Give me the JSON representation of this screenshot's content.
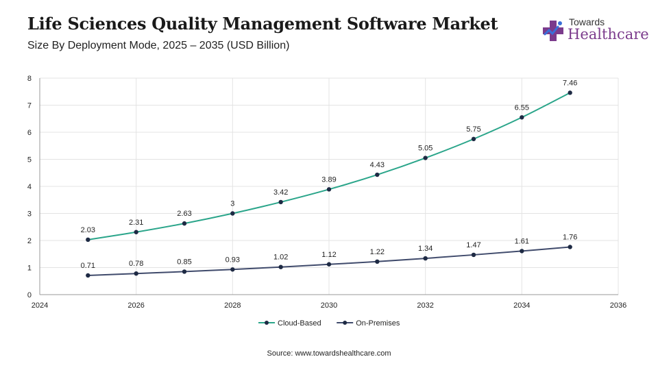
{
  "header": {
    "title": "Life Sciences Quality Management Software Market",
    "subtitle": "Size By Deployment Mode, 2025 – 2035 (USD Billion)"
  },
  "logo": {
    "line1": "Towards",
    "line2": "Healthcare",
    "icon": "medical-cross-icon",
    "colors": {
      "cross": "#7b3b8c",
      "accent": "#3a6fd8"
    }
  },
  "source": "Source: www.towardshealthcare.com",
  "colors": {
    "cloud": "#2aa58a",
    "onprem": "#3f4a6b",
    "marker": "#1e2a44",
    "grid": "#e3e3e3"
  },
  "chart_data": {
    "type": "line",
    "x": [
      2025,
      2026,
      2027,
      2028,
      2029,
      2030,
      2031,
      2032,
      2033,
      2034,
      2035
    ],
    "series": [
      {
        "name": "Cloud-Based",
        "values": [
          2.03,
          2.31,
          2.63,
          3,
          3.42,
          3.89,
          4.43,
          5.05,
          5.75,
          6.55,
          7.46
        ]
      },
      {
        "name": "On-Premises",
        "values": [
          0.71,
          0.78,
          0.85,
          0.93,
          1.02,
          1.12,
          1.22,
          1.34,
          1.47,
          1.61,
          1.76
        ]
      }
    ],
    "xlim": [
      2024,
      2036
    ],
    "ylim": [
      0,
      8
    ],
    "xticks": [
      2024,
      2026,
      2028,
      2030,
      2032,
      2034,
      2036
    ],
    "yticks": [
      0,
      1,
      2,
      3,
      4,
      5,
      6,
      7,
      8
    ],
    "grid": true,
    "legend": "bottom-center",
    "data_labels": true
  }
}
